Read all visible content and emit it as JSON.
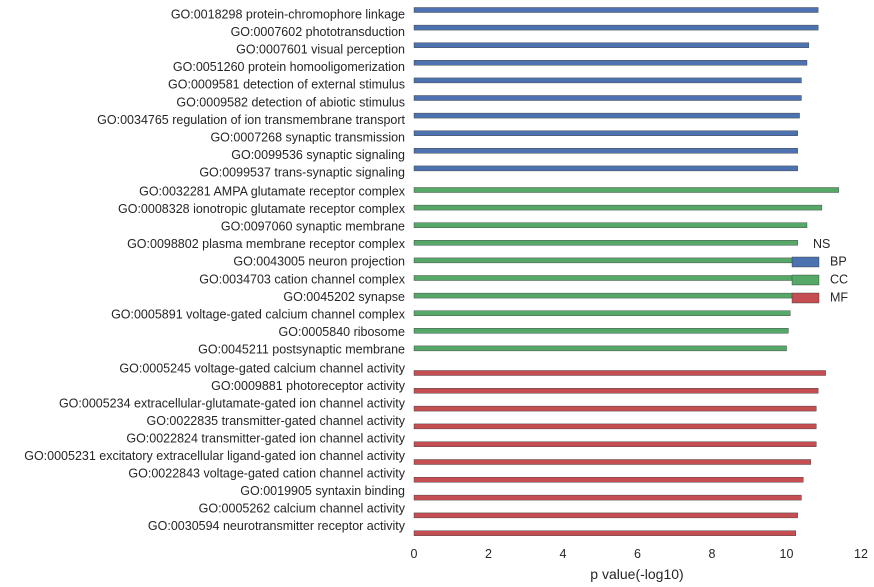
{
  "chart_data": {
    "type": "bar",
    "orientation": "horizontal",
    "title": "",
    "xlabel": "p value(-log10)",
    "ylabel": "",
    "xlim": [
      0,
      12
    ],
    "xticks": [
      "0",
      "2",
      "4",
      "6",
      "8",
      "10",
      "12"
    ],
    "grid": false,
    "legend": {
      "title": "NS",
      "placement": "right",
      "entries": [
        {
          "name": "BP",
          "color": "#4c72b0"
        },
        {
          "name": "CC",
          "color": "#55a868"
        },
        {
          "name": "MF",
          "color": "#c44e52"
        }
      ]
    },
    "series": [
      {
        "name": "BP",
        "color": "#4c72b0",
        "categories": [
          "GO:0018298 protein-chromophore linkage",
          "GO:0007602 phototransduction",
          "GO:0007601 visual perception",
          "GO:0051260 protein homooligomerization",
          "GO:0009581 detection of external stimulus",
          "GO:0009582 detection of abiotic stimulus",
          "GO:0034765 regulation of ion transmembrane transport",
          "GO:0007268 synaptic transmission",
          "GO:0099536 synaptic signaling",
          "GO:0099537 trans-synaptic signaling"
        ],
        "values": [
          10.85,
          10.85,
          10.6,
          10.55,
          10.4,
          10.4,
          10.35,
          10.3,
          10.3,
          10.3
        ]
      },
      {
        "name": "CC",
        "color": "#55a868",
        "categories": [
          "GO:0032281 AMPA glutamate receptor complex",
          "GO:0008328 ionotropic glutamate receptor complex",
          "GO:0097060 synaptic membrane",
          "GO:0098802 plasma membrane receptor complex",
          "GO:0043005 neuron projection",
          "GO:0034703 cation channel complex",
          "GO:0045202 synapse",
          "GO:0005891 voltage-gated calcium channel complex",
          "GO:0005840 ribosome",
          "GO:0045211 postsynaptic membrane"
        ],
        "values": [
          11.4,
          10.95,
          10.55,
          10.3,
          10.2,
          10.2,
          10.15,
          10.1,
          10.05,
          10.0
        ]
      },
      {
        "name": "MF",
        "color": "#c44e52",
        "categories": [
          "GO:0005245 voltage-gated calcium channel activity",
          "GO:0009881 photoreceptor activity",
          "GO:0005234 extracellular-glutamate-gated ion channel activity",
          "GO:0022835 transmitter-gated channel activity",
          "GO:0022824 transmitter-gated ion channel activity",
          "GO:0005231 excitatory extracellular ligand-gated ion channel activity",
          "GO:0022843 voltage-gated cation channel activity",
          "GO:0019905 syntaxin binding",
          "GO:0005262 calcium channel activity",
          "GO:0030594 neurotransmitter receptor activity"
        ],
        "values": [
          11.05,
          10.85,
          10.8,
          10.8,
          10.8,
          10.65,
          10.45,
          10.4,
          10.3,
          10.25
        ]
      }
    ]
  }
}
